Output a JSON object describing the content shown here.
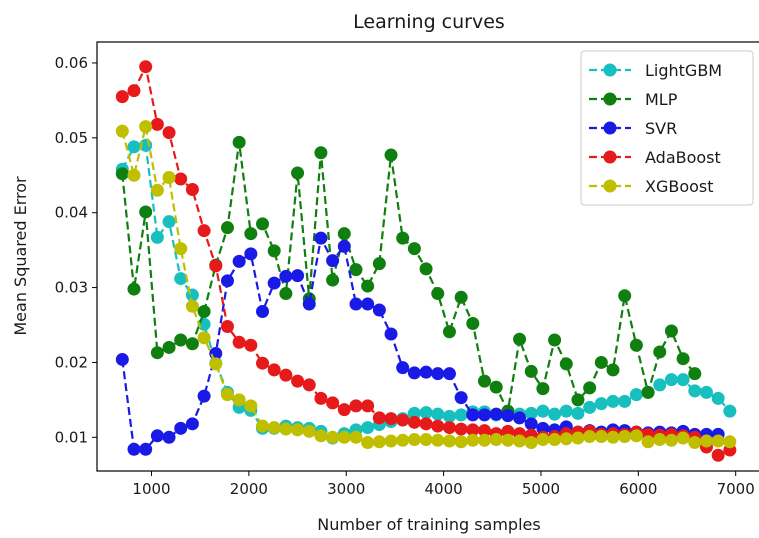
{
  "chart_data": {
    "type": "line",
    "title": "Learning curves",
    "xlabel": "Number of training samples",
    "ylabel": "Mean Squared Error",
    "xlim": [
      440,
      7260
    ],
    "ylim": [
      0.0055,
      0.0628
    ],
    "xticks": [
      1000,
      2000,
      3000,
      4000,
      5000,
      6000,
      7000
    ],
    "yticks": [
      0.01,
      0.02,
      0.03,
      0.04,
      0.05,
      0.06
    ],
    "xtick_labels": [
      "1000",
      "2000",
      "3000",
      "4000",
      "5000",
      "6000",
      "7000"
    ],
    "ytick_labels": [
      "0.01",
      "0.02",
      "0.03",
      "0.04",
      "0.05",
      "0.06"
    ],
    "grid": false,
    "legend_position": "top-right",
    "x": [
      700,
      820,
      940,
      1060,
      1180,
      1300,
      1420,
      1540,
      1660,
      1780,
      1900,
      2020,
      2140,
      2260,
      2380,
      2500,
      2620,
      2740,
      2860,
      2980,
      3100,
      3220,
      3340,
      3460,
      3580,
      3700,
      3820,
      3940,
      4060,
      4180,
      4300,
      4420,
      4540,
      4660,
      4780,
      4900,
      5020,
      5140,
      5260,
      5380,
      5500,
      5620,
      5740,
      5860,
      5980,
      6100,
      6220,
      6340,
      6460,
      6580,
      6700,
      6820,
      6940
    ],
    "series": [
      {
        "name": "LightGBM",
        "color": "#17bfbf",
        "values": [
          0.0458,
          0.0488,
          0.049,
          0.0367,
          0.0388,
          0.0312,
          0.029,
          0.0251,
          0.0199,
          0.016,
          0.014,
          0.0136,
          0.0112,
          0.0112,
          0.0115,
          0.0113,
          0.0112,
          0.0108,
          0.0099,
          0.0105,
          0.011,
          0.0113,
          0.0117,
          0.0121,
          0.0125,
          0.0132,
          0.0133,
          0.0131,
          0.0128,
          0.013,
          0.0134,
          0.0134,
          0.013,
          0.0132,
          0.0131,
          0.0132,
          0.0135,
          0.0131,
          0.0135,
          0.0132,
          0.014,
          0.0145,
          0.0148,
          0.0148,
          0.0157,
          0.016,
          0.017,
          0.0177,
          0.0177,
          0.0162,
          0.016,
          0.0152,
          0.0135
        ]
      },
      {
        "name": "MLP",
        "color": "#0f7f0f",
        "values": [
          0.0452,
          0.0298,
          0.0401,
          0.0213,
          0.022,
          0.023,
          0.0225,
          0.0268,
          0.033,
          0.038,
          0.0494,
          0.0372,
          0.0385,
          0.0349,
          0.0292,
          0.0453,
          0.0285,
          0.048,
          0.031,
          0.0372,
          0.0324,
          0.0302,
          0.0332,
          0.0477,
          0.0366,
          0.0352,
          0.0325,
          0.0292,
          0.0241,
          0.0287,
          0.0252,
          0.0175,
          0.0167,
          0.0135,
          0.0231,
          0.0188,
          0.0165,
          0.023,
          0.0198,
          0.015,
          0.0166,
          0.02,
          0.019,
          0.0289,
          0.0223,
          0.016,
          0.0214,
          0.0242,
          0.0205,
          0.0185,
          null,
          null,
          null
        ]
      },
      {
        "name": "SVR",
        "color": "#1a1ae6",
        "values": [
          0.0204,
          0.0084,
          0.0084,
          0.0102,
          0.01,
          0.0112,
          0.0118,
          0.0155,
          0.0212,
          0.0309,
          0.0335,
          0.0345,
          0.0268,
          0.0306,
          0.0315,
          0.0316,
          0.0278,
          0.0366,
          0.0336,
          0.0355,
          0.0278,
          0.0278,
          0.027,
          0.0238,
          0.0193,
          0.0186,
          0.0187,
          0.0185,
          0.0185,
          0.0153,
          0.013,
          0.013,
          0.0131,
          0.0129,
          0.0126,
          0.0118,
          0.0112,
          0.011,
          0.0114,
          0.0107,
          0.0109,
          0.0107,
          0.011,
          0.0109,
          0.0107,
          0.0106,
          0.0107,
          0.0106,
          0.0108,
          0.0104,
          0.0104,
          0.0104,
          null
        ]
      },
      {
        "name": "AdaBoost",
        "color": "#e61a1a",
        "values": [
          0.0555,
          0.0563,
          0.0595,
          0.0518,
          0.0507,
          0.0445,
          0.0431,
          0.0376,
          0.0329,
          0.0248,
          0.0227,
          0.0223,
          0.0199,
          0.019,
          0.0183,
          0.0175,
          0.017,
          0.0152,
          0.0146,
          0.0137,
          0.0142,
          0.0142,
          0.0126,
          0.0125,
          0.0123,
          0.012,
          0.0118,
          0.0115,
          0.0113,
          0.0111,
          0.011,
          0.0109,
          0.0105,
          0.0108,
          0.0105,
          0.0103,
          0.01,
          0.0101,
          0.0105,
          0.0107,
          0.0108,
          0.0104,
          0.0105,
          0.0104,
          0.0107,
          0.0104,
          0.0103,
          0.0104,
          0.0102,
          0.01,
          0.0087,
          0.0076,
          0.0083
        ]
      },
      {
        "name": "XGBoost",
        "color": "#bfbf00",
        "values": [
          0.0509,
          0.045,
          0.0515,
          0.043,
          0.0447,
          0.0352,
          0.0275,
          0.0233,
          0.0198,
          0.0157,
          0.015,
          0.0142,
          0.0115,
          0.0113,
          0.0111,
          0.011,
          0.0108,
          0.0102,
          0.01,
          0.01,
          0.01,
          0.0093,
          0.0094,
          0.0095,
          0.0096,
          0.0097,
          0.0097,
          0.0096,
          0.0095,
          0.0094,
          0.0096,
          0.0096,
          0.0097,
          0.0096,
          0.0095,
          0.0093,
          0.0097,
          0.0097,
          0.0098,
          0.0099,
          0.0101,
          0.0101,
          0.01,
          0.0101,
          0.0102,
          0.0094,
          0.0097,
          0.0096,
          0.0099,
          0.0093,
          0.0095,
          0.0095,
          0.0094
        ]
      }
    ]
  }
}
